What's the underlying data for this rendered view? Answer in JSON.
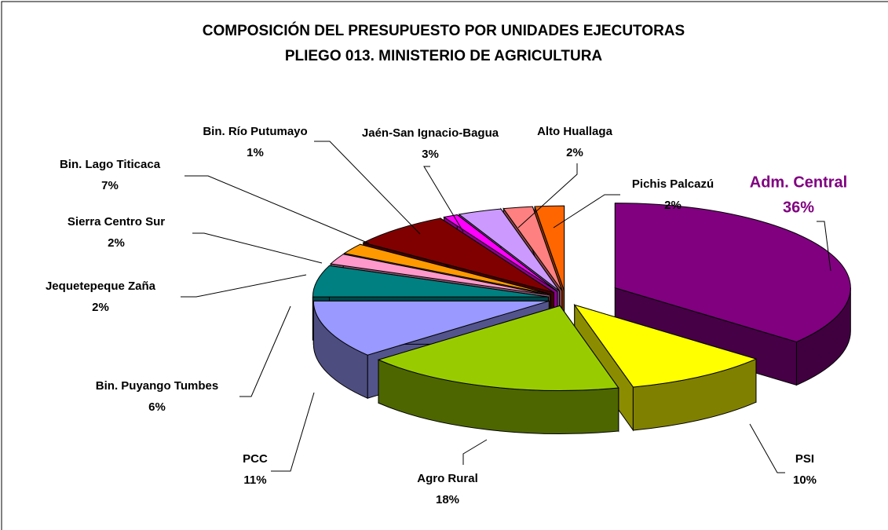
{
  "chart_data": {
    "type": "pie",
    "title": "COMPOSICIÓN DEL PRESUPUESTO POR UNIDADES EJECUTORAS",
    "subtitle": "PLIEGO 013. MINISTERIO DE AGRICULTURA",
    "categories": [
      "Adm. Central",
      "PSI",
      "Agro Rural",
      "PCC",
      "Bin. Puyango Tumbes",
      "Jequetepeque Zaña",
      "Sierra Centro Sur",
      "Bin. Lago Titicaca",
      "Bin. Río Putumayo",
      "Jaén-San Ignacio-Bagua",
      "Alto Huallaga",
      "Pichis Palcazú"
    ],
    "values": [
      36,
      10,
      18,
      11,
      6,
      2,
      2,
      7,
      1,
      3,
      2,
      2
    ],
    "value_labels": [
      "36%",
      "10%",
      "18%",
      "11%",
      "6%",
      "2%",
      "2%",
      "7%",
      "1%",
      "3%",
      "2%",
      "2%"
    ],
    "colors": [
      "#800080",
      "#ffff00",
      "#99cc00",
      "#9999ff",
      "#008080",
      "#ff99cc",
      "#ff9900",
      "#800000",
      "#ff00ff",
      "#cc99ff",
      "#ff8080",
      "#ff6600"
    ]
  }
}
